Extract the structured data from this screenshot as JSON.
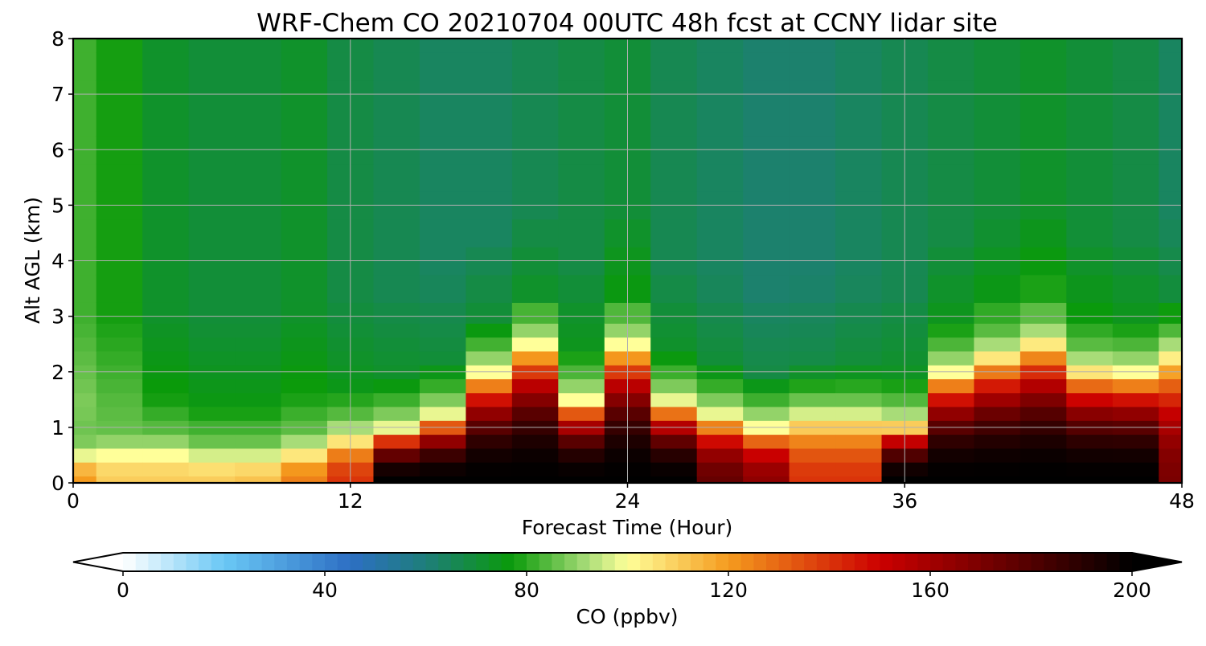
{
  "chart_data": {
    "type": "heatmap",
    "title": "WRF-Chem CO  20210704 00UTC 48h fcst at CCNY lidar site",
    "xlabel": "Forecast Time (Hour)",
    "ylabel": "Alt AGL (km)",
    "xlim": [
      0,
      48
    ],
    "ylim": [
      0,
      8
    ],
    "x_ticks": [
      "0",
      "12",
      "24",
      "36",
      "48"
    ],
    "y_ticks": [
      "0",
      "1",
      "2",
      "3",
      "4",
      "5",
      "6",
      "7",
      "8"
    ],
    "grid": true,
    "x_hours": [
      0,
      2,
      4,
      6,
      8,
      10,
      12,
      14,
      16,
      18,
      20,
      22,
      24,
      26,
      28,
      30,
      32,
      34,
      36,
      38,
      40,
      42,
      44,
      46,
      48
    ],
    "alt_km": [
      0.0,
      0.25,
      0.5,
      0.75,
      1.0,
      1.25,
      1.5,
      1.75,
      2.0,
      2.25,
      2.5,
      2.75,
      3.0,
      3.5,
      4.0,
      4.5,
      5.0,
      5.5,
      6.0,
      6.5,
      7.0,
      7.5,
      8.0
    ],
    "boundary_layer_top_km": [
      0.45,
      0.5,
      0.5,
      0.4,
      0.4,
      0.55,
      0.8,
      0.95,
      1.2,
      2.0,
      2.5,
      1.5,
      2.5,
      1.45,
      1.2,
      1.0,
      1.15,
      1.15,
      1.05,
      2.0,
      2.3,
      2.55,
      2.05,
      2.0,
      2.3
    ],
    "co_ppbv_max_in_bl": [
      120,
      110,
      110,
      110,
      112,
      125,
      140,
      200,
      200,
      200,
      200,
      200,
      200,
      200,
      175,
      165,
      140,
      140,
      200,
      200,
      200,
      200,
      200,
      200,
      170
    ],
    "co_ppbv_above_bl": [
      82,
      78,
      72,
      70,
      70,
      72,
      68,
      66,
      64,
      64,
      66,
      68,
      70,
      66,
      64,
      62,
      62,
      64,
      66,
      68,
      70,
      72,
      70,
      68,
      64
    ],
    "colorbar": {
      "label": "CO  (ppbv)",
      "min": 0,
      "max": 200,
      "ticks": [
        "0",
        "40",
        "80",
        "120",
        "160",
        "200"
      ],
      "extend": "both",
      "colormap_stops": [
        {
          "value": 0,
          "color": "#ffffff"
        },
        {
          "value": 20,
          "color": "#6ac8f5"
        },
        {
          "value": 45,
          "color": "#2d6fc4"
        },
        {
          "value": 60,
          "color": "#1e7e7a"
        },
        {
          "value": 77,
          "color": "#0a9a0a"
        },
        {
          "value": 92,
          "color": "#a8dc78"
        },
        {
          "value": 100,
          "color": "#ffff99"
        },
        {
          "value": 120,
          "color": "#f59b1e"
        },
        {
          "value": 150,
          "color": "#cc0000"
        },
        {
          "value": 200,
          "color": "#000000"
        }
      ]
    }
  }
}
